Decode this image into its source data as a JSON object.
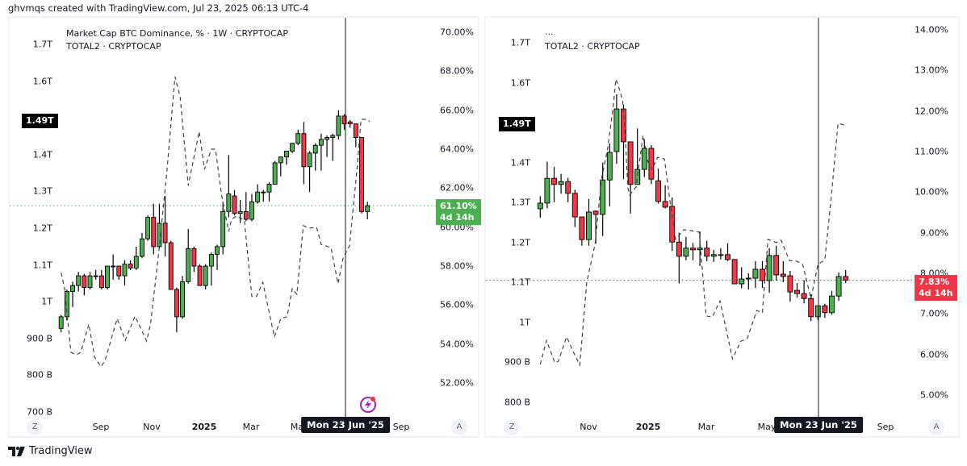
{
  "header": {
    "attribution": "ghvmqs created with TradingView.com, Jul 23, 2025 06:13 UTC-4"
  },
  "footer": {
    "brand": "TradingView"
  },
  "colors": {
    "up": "#4caf50",
    "down": "#f23645",
    "dashed": "#444444",
    "crosshair": "#131722"
  },
  "chart_data": [
    {
      "type": "candlestick+line",
      "legend": [
        "Market Cap BTC Dominance, % · 1W · CRYPTOCAP",
        "TOTAL2 · CRYPTOCAP"
      ],
      "candle_series": "BTC Dominance %",
      "line_series": "TOTAL2 (T)",
      "right_axis": {
        "ticks": [
          {
            "label": "70.00%",
            "value": 70
          },
          {
            "label": "68.00%",
            "value": 68
          },
          {
            "label": "66.00%",
            "value": 66
          },
          {
            "label": "64.00%",
            "value": 64
          },
          {
            "label": "62.00%",
            "value": 62
          },
          {
            "label": "60.00%",
            "value": 60
          },
          {
            "label": "58.00%",
            "value": 58
          },
          {
            "label": "56.00%",
            "value": 56
          },
          {
            "label": "54.00%",
            "value": 54
          },
          {
            "label": "52.00%",
            "value": 52
          }
        ]
      },
      "left_axis": {
        "ticks": [
          {
            "label": "1.7T",
            "value": 1.7
          },
          {
            "label": "1.6T",
            "value": 1.6
          },
          {
            "label": "1.4T",
            "value": 1.4
          },
          {
            "label": "1.3T",
            "value": 1.3
          },
          {
            "label": "1.2T",
            "value": 1.2
          },
          {
            "label": "1.1T",
            "value": 1.1
          },
          {
            "label": "1T",
            "value": 1.0
          },
          {
            "label": "900 B",
            "value": 0.9
          },
          {
            "label": "800 B",
            "value": 0.8
          },
          {
            "label": "700 B",
            "value": 0.7
          }
        ]
      },
      "time_axis": [
        "Sep",
        "Nov",
        "2025",
        "Mar",
        "Ma",
        "Sep"
      ],
      "crosshair_label": "Mon 23 Jun '25",
      "crosshair_index": 49,
      "last_value_label": "61.10%",
      "last_value_countdown": "4d 14h",
      "last_value": 61.1,
      "line_last_label": "1.49T",
      "line_last_value": 1.49,
      "candles": [
        [
          54.8,
          55.5,
          54.6,
          55.4
        ],
        [
          55.4,
          56.8,
          55.2,
          56.7
        ],
        [
          56.7,
          57.2,
          55.9,
          57.0
        ],
        [
          57.0,
          57.7,
          56.7,
          57.5
        ],
        [
          57.5,
          57.6,
          56.5,
          56.9
        ],
        [
          56.9,
          57.7,
          56.8,
          57.5
        ],
        [
          57.5,
          57.8,
          57.3,
          57.5
        ],
        [
          57.5,
          57.8,
          56.8,
          56.9
        ],
        [
          56.9,
          58.0,
          56.8,
          58.0
        ],
        [
          58.0,
          58.6,
          57.3,
          58.0
        ],
        [
          58.0,
          58.0,
          57.3,
          57.5
        ],
        [
          57.5,
          58.3,
          57.0,
          58.1
        ],
        [
          58.1,
          58.3,
          57.8,
          57.9
        ],
        [
          57.9,
          59.0,
          57.8,
          58.5
        ],
        [
          58.5,
          59.7,
          58.4,
          59.4
        ],
        [
          59.4,
          60.6,
          59.3,
          60.5
        ],
        [
          60.5,
          61.2,
          58.6,
          59.0
        ],
        [
          59.0,
          61.2,
          58.9,
          60.2
        ],
        [
          60.2,
          61.6,
          58.5,
          59.2
        ],
        [
          59.2,
          59.3,
          56.8,
          56.8
        ],
        [
          56.8,
          56.9,
          54.6,
          55.4
        ],
        [
          55.4,
          57.5,
          55.3,
          57.2
        ],
        [
          57.2,
          59.9,
          57.1,
          58.9
        ],
        [
          58.9,
          59.0,
          57.7,
          58.0
        ],
        [
          58.0,
          58.1,
          57.0,
          57.0
        ],
        [
          57.0,
          58.1,
          56.8,
          58.0
        ],
        [
          58.0,
          58.7,
          57.0,
          58.6
        ],
        [
          58.6,
          59.1,
          57.8,
          59.0
        ],
        [
          59.0,
          61.3,
          58.6,
          60.8
        ],
        [
          60.8,
          63.7,
          60.5,
          61.7
        ],
        [
          61.6,
          61.9,
          60.6,
          60.7
        ],
        [
          60.7,
          61.4,
          60.2,
          60.8
        ],
        [
          60.8,
          61.8,
          60.3,
          60.4
        ],
        [
          60.4,
          61.7,
          60.3,
          61.3
        ],
        [
          61.3,
          62.2,
          61.2,
          61.8
        ],
        [
          61.8,
          61.9,
          61.3,
          61.8
        ],
        [
          61.8,
          62.3,
          61.3,
          62.2
        ],
        [
          62.2,
          63.4,
          62.2,
          63.3
        ],
        [
          63.3,
          63.6,
          62.6,
          63.6
        ],
        [
          63.6,
          63.9,
          63.2,
          63.9
        ],
        [
          63.9,
          64.3,
          63.8,
          64.3
        ],
        [
          64.3,
          65.0,
          64.2,
          64.8
        ],
        [
          64.8,
          65.4,
          62.2,
          63.1
        ],
        [
          63.1,
          63.9,
          61.8,
          63.8
        ],
        [
          63.8,
          64.3,
          62.9,
          64.2
        ],
        [
          64.2,
          64.8,
          62.9,
          64.5
        ],
        [
          64.5,
          64.7,
          63.6,
          64.6
        ],
        [
          64.6,
          64.8,
          63.4,
          64.7
        ],
        [
          64.7,
          66.0,
          64.5,
          65.7
        ],
        [
          65.7,
          65.8,
          65.0,
          65.3
        ],
        [
          65.4,
          65.5,
          65.1,
          65.3
        ],
        [
          65.3,
          65.3,
          64.1,
          64.6
        ],
        [
          64.6,
          64.6,
          60.7,
          60.8
        ],
        [
          60.8,
          61.3,
          60.4,
          61.1
        ]
      ],
      "line_points": [
        [
          0,
          1.079
        ],
        [
          0.6,
          1.037
        ],
        [
          1.7,
          0.862
        ],
        [
          2.7,
          0.856
        ],
        [
          3.4,
          0.862
        ],
        [
          4.8,
          0.939
        ],
        [
          5.8,
          0.849
        ],
        [
          6.9,
          0.823
        ],
        [
          7.6,
          0.84
        ],
        [
          9.7,
          0.954
        ],
        [
          11.1,
          0.895
        ],
        [
          12.8,
          0.961
        ],
        [
          14.8,
          0.893
        ],
        [
          15.5,
          0.943
        ],
        [
          16.9,
          1.134
        ],
        [
          18.3,
          1.353
        ],
        [
          19.7,
          1.612
        ],
        [
          20.6,
          1.557
        ],
        [
          22.0,
          1.316
        ],
        [
          23.9,
          1.463
        ],
        [
          24.8,
          1.36
        ],
        [
          26.0,
          1.415
        ],
        [
          26.7,
          1.415
        ],
        [
          27.8,
          1.288
        ],
        [
          29.0,
          1.191
        ],
        [
          29.5,
          1.224
        ],
        [
          30.3,
          1.233
        ],
        [
          31.7,
          1.222
        ],
        [
          33.0,
          1.014
        ],
        [
          33.8,
          1.014
        ],
        [
          34.9,
          1.053
        ],
        [
          36.9,
          0.904
        ],
        [
          38.0,
          0.954
        ],
        [
          39.1,
          0.959
        ],
        [
          40.0,
          1.036
        ],
        [
          40.8,
          1.02
        ],
        [
          41.9,
          1.207
        ],
        [
          42.9,
          1.2
        ],
        [
          44.2,
          1.202
        ],
        [
          45.0,
          1.156
        ],
        [
          46.7,
          1.147
        ],
        [
          47.9,
          1.049
        ],
        [
          48.8,
          1.119
        ],
        [
          49.9,
          1.152
        ],
        [
          51.2,
          1.36
        ],
        [
          51.9,
          1.496
        ],
        [
          52.7,
          1.496
        ],
        [
          53.4,
          1.49
        ]
      ]
    },
    {
      "type": "candlestick+line",
      "legend": [
        "...",
        "TOTAL2 · CRYPTOCAP"
      ],
      "candle_series": "%",
      "line_series": "TOTAL2 (T)",
      "right_axis": {
        "ticks": [
          {
            "label": "14.00%",
            "value": 14
          },
          {
            "label": "13.00%",
            "value": 13
          },
          {
            "label": "12.00%",
            "value": 12
          },
          {
            "label": "11.00%",
            "value": 11
          },
          {
            "label": "10.00%",
            "value": 10
          },
          {
            "label": "9.00%",
            "value": 9
          },
          {
            "label": "8.00%",
            "value": 8
          },
          {
            "label": "7.00%",
            "value": 7
          },
          {
            "label": "6.00%",
            "value": 6
          },
          {
            "label": "5.00%",
            "value": 5
          }
        ]
      },
      "left_axis": {
        "ticks": [
          {
            "label": "1.7T",
            "value": 1.7
          },
          {
            "label": "1.6T",
            "value": 1.6
          },
          {
            "label": "1.4T",
            "value": 1.4
          },
          {
            "label": "1.3T",
            "value": 1.3
          },
          {
            "label": "1.2T",
            "value": 1.2
          },
          {
            "label": "1.1T",
            "value": 1.1
          },
          {
            "label": "1T",
            "value": 1.0
          },
          {
            "label": "900 B",
            "value": 0.9
          },
          {
            "label": "800 B",
            "value": 0.8
          }
        ]
      },
      "time_axis": [
        "Nov",
        "2025",
        "Mar",
        "May",
        "Sep"
      ],
      "crosshair_label": "Mon 23 Jun '25",
      "crosshair_index": 40,
      "last_value_label": "7.83%",
      "last_value_countdown": "4d 14h",
      "last_value": 7.83,
      "line_last_label": "1.49T",
      "line_last_value": 1.49,
      "candles": [
        [
          9.59,
          9.9,
          9.37,
          9.73
        ],
        [
          9.73,
          10.75,
          9.6,
          10.34
        ],
        [
          10.34,
          10.62,
          9.75,
          10.19
        ],
        [
          10.19,
          10.45,
          9.96,
          10.26
        ],
        [
          10.26,
          10.35,
          9.75,
          9.97
        ],
        [
          9.97,
          10.06,
          9.14,
          9.39
        ],
        [
          9.39,
          9.39,
          8.68,
          8.83
        ],
        [
          8.83,
          9.83,
          8.68,
          9.51
        ],
        [
          9.53,
          9.55,
          8.73,
          9.45
        ],
        [
          9.45,
          10.73,
          8.92,
          10.3
        ],
        [
          10.3,
          11.2,
          9.65,
          10.98
        ],
        [
          11.0,
          12.41,
          10.7,
          12.05
        ],
        [
          12.05,
          12.15,
          10.32,
          11.24
        ],
        [
          11.24,
          11.24,
          9.47,
          10.19
        ],
        [
          10.19,
          11.57,
          10.19,
          10.56
        ],
        [
          10.56,
          11.3,
          10.37,
          11.08
        ],
        [
          11.08,
          11.16,
          10.2,
          10.32
        ],
        [
          10.28,
          10.58,
          9.72,
          9.77
        ],
        [
          9.77,
          10.17,
          9.6,
          9.63
        ],
        [
          9.65,
          9.87,
          8.55,
          8.77
        ],
        [
          8.77,
          9.0,
          7.75,
          8.42
        ],
        [
          8.42,
          8.9,
          8.32,
          8.62
        ],
        [
          8.62,
          8.75,
          8.32,
          8.58
        ],
        [
          8.58,
          9.03,
          8.18,
          8.62
        ],
        [
          8.62,
          8.8,
          8.3,
          8.42
        ],
        [
          8.42,
          8.58,
          8.28,
          8.46
        ],
        [
          8.46,
          8.62,
          8.34,
          8.46
        ],
        [
          8.46,
          8.74,
          8.3,
          8.34
        ],
        [
          8.34,
          8.34,
          7.73,
          7.74
        ],
        [
          7.74,
          8.15,
          7.63,
          7.86
        ],
        [
          7.88,
          8.0,
          7.6,
          7.88
        ],
        [
          7.88,
          8.3,
          7.64,
          8.1
        ],
        [
          8.1,
          8.3,
          7.64,
          7.82
        ],
        [
          7.82,
          8.62,
          7.52,
          8.44
        ],
        [
          8.44,
          8.68,
          7.82,
          7.96
        ],
        [
          7.98,
          8.3,
          7.78,
          7.92
        ],
        [
          7.94,
          8.06,
          7.3,
          7.54
        ],
        [
          7.58,
          7.76,
          7.4,
          7.5
        ],
        [
          7.5,
          7.83,
          7.26,
          7.38
        ],
        [
          7.38,
          7.48,
          6.82,
          6.93
        ],
        [
          6.93,
          7.2,
          6.85,
          7.2
        ],
        [
          7.2,
          7.25,
          6.9,
          7.03
        ],
        [
          7.03,
          7.57,
          6.98,
          7.44
        ],
        [
          7.44,
          8.02,
          7.32,
          7.92
        ],
        [
          7.92,
          8.08,
          7.76,
          7.83
        ]
      ],
      "line_points": [
        [
          0,
          0.895
        ],
        [
          0.9,
          0.955
        ],
        [
          2.1,
          0.899
        ],
        [
          2.6,
          0.903
        ],
        [
          3.8,
          0.964
        ],
        [
          4.7,
          0.929
        ],
        [
          5.7,
          0.893
        ],
        [
          6.7,
          1.101
        ],
        [
          7.9,
          1.196
        ],
        [
          8.8,
          1.357
        ],
        [
          9.7,
          1.434
        ],
        [
          10.5,
          1.539
        ],
        [
          10.9,
          1.609
        ],
        [
          11.5,
          1.579
        ],
        [
          11.9,
          1.551
        ],
        [
          12.3,
          1.45
        ],
        [
          12.6,
          1.337
        ],
        [
          12.9,
          1.319
        ],
        [
          13.8,
          1.339
        ],
        [
          14.8,
          1.468
        ],
        [
          15.5,
          1.403
        ],
        [
          16.1,
          1.383
        ],
        [
          16.9,
          1.413
        ],
        [
          17.9,
          1.409
        ],
        [
          18.7,
          1.302
        ],
        [
          19.5,
          1.208
        ],
        [
          20.7,
          1.232
        ],
        [
          21.6,
          1.23
        ],
        [
          22.9,
          1.226
        ],
        [
          23.9,
          1.016
        ],
        [
          24.8,
          1.014
        ],
        [
          25.9,
          1.054
        ],
        [
          27.7,
          0.909
        ],
        [
          28.9,
          0.953
        ],
        [
          29.8,
          0.959
        ],
        [
          31.2,
          1.03
        ],
        [
          32.0,
          1.024
        ],
        [
          32.8,
          1.208
        ],
        [
          34.0,
          1.2
        ],
        [
          34.7,
          1.206
        ],
        [
          35.9,
          1.155
        ],
        [
          37.0,
          1.153
        ],
        [
          37.8,
          1.145
        ],
        [
          39.0,
          1.06
        ],
        [
          40.0,
          1.145
        ],
        [
          41.0,
          1.157
        ],
        [
          41.9,
          1.309
        ],
        [
          42.9,
          1.498
        ],
        [
          43.9,
          1.494
        ]
      ]
    }
  ],
  "buttons": {
    "auto_scale": "A",
    "zoom": "Z"
  }
}
